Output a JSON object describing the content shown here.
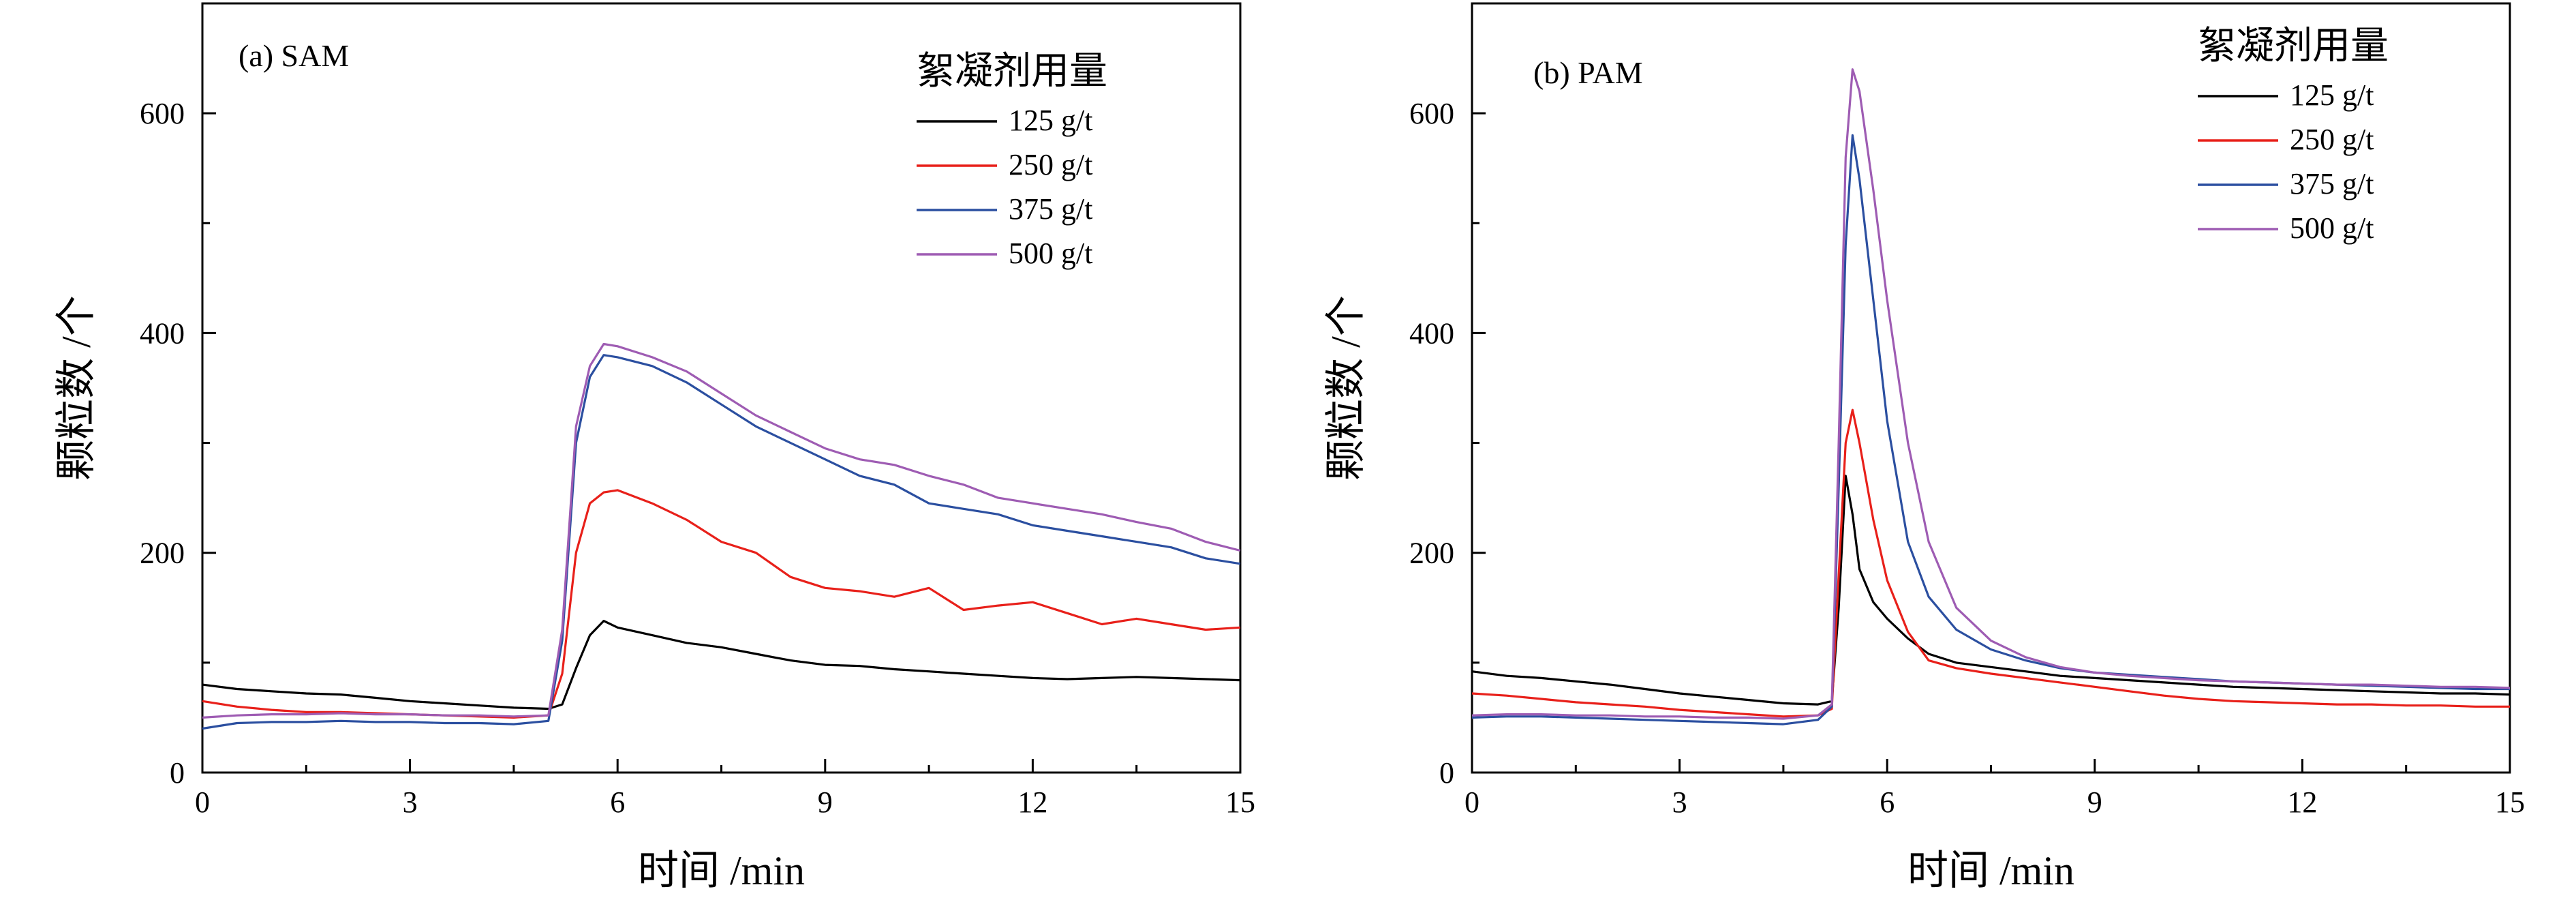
{
  "chart_data": [
    {
      "type": "line",
      "title": "(a) SAM",
      "xlabel": "时间 /min",
      "ylabel": "颗粒数 /个",
      "xlim": [
        0,
        15
      ],
      "ylim": [
        0,
        700
      ],
      "xticks": [
        0,
        3,
        6,
        9,
        12,
        15
      ],
      "xtick_labels": [
        "0",
        "3",
        "6",
        "9",
        "12",
        "15"
      ],
      "yticks": [
        0,
        200,
        400,
        600
      ],
      "ytick_labels": [
        "0",
        "200",
        "400",
        "600"
      ],
      "grid": false,
      "legend": {
        "title": "絮凝剂用量",
        "placement": "top-right"
      },
      "series": [
        {
          "name": "125 g/t",
          "color": "#000000",
          "x": [
            0,
            0.5,
            1,
            1.5,
            2,
            2.5,
            3,
            3.5,
            4,
            4.5,
            5,
            5.2,
            5.4,
            5.6,
            5.8,
            6,
            6.5,
            7,
            7.5,
            8,
            8.5,
            9,
            9.5,
            10,
            10.5,
            11,
            11.5,
            12,
            12.5,
            13,
            13.5,
            14,
            14.5,
            15
          ],
          "y": [
            80,
            76,
            74,
            72,
            71,
            68,
            65,
            63,
            61,
            59,
            58,
            62,
            95,
            125,
            138,
            132,
            125,
            118,
            114,
            108,
            102,
            98,
            97,
            94,
            92,
            90,
            88,
            86,
            85,
            86,
            87,
            86,
            85,
            84
          ]
        },
        {
          "name": "250 g/t",
          "color": "#e8201a",
          "x": [
            0,
            0.5,
            1,
            1.5,
            2,
            2.5,
            3,
            3.5,
            4,
            4.5,
            5,
            5.2,
            5.4,
            5.6,
            5.8,
            6,
            6.5,
            7,
            7.5,
            8,
            8.5,
            9,
            9.5,
            10,
            10.5,
            11,
            11.5,
            12,
            12.5,
            13,
            13.5,
            14,
            14.5,
            15
          ],
          "y": [
            65,
            60,
            57,
            55,
            55,
            54,
            53,
            52,
            51,
            50,
            52,
            90,
            200,
            245,
            255,
            257,
            245,
            230,
            210,
            200,
            178,
            168,
            165,
            160,
            168,
            148,
            152,
            155,
            145,
            135,
            140,
            135,
            130,
            132
          ]
        },
        {
          "name": "375 g/t",
          "color": "#2b4fa0",
          "x": [
            0,
            0.5,
            1,
            1.5,
            2,
            2.5,
            3,
            3.5,
            4,
            4.5,
            5,
            5.2,
            5.4,
            5.6,
            5.8,
            6,
            6.5,
            7,
            7.5,
            8,
            8.5,
            9,
            9.5,
            10,
            10.5,
            11,
            11.5,
            12,
            12.5,
            13,
            13.5,
            14,
            14.5,
            15
          ],
          "y": [
            40,
            45,
            46,
            46,
            47,
            46,
            46,
            45,
            45,
            44,
            47,
            120,
            300,
            360,
            380,
            378,
            370,
            355,
            335,
            315,
            300,
            285,
            270,
            262,
            245,
            240,
            235,
            225,
            220,
            215,
            210,
            205,
            195,
            190
          ]
        },
        {
          "name": "500 g/t",
          "color": "#9e5cb3",
          "x": [
            0,
            0.5,
            1,
            1.5,
            2,
            2.5,
            3,
            3.5,
            4,
            4.5,
            5,
            5.2,
            5.4,
            5.6,
            5.8,
            6,
            6.5,
            7,
            7.5,
            8,
            8.5,
            9,
            9.5,
            10,
            10.5,
            11,
            11.5,
            12,
            12.5,
            13,
            13.5,
            14,
            14.5,
            15
          ],
          "y": [
            50,
            52,
            53,
            53,
            54,
            53,
            53,
            52,
            52,
            51,
            52,
            130,
            315,
            370,
            390,
            388,
            378,
            365,
            345,
            325,
            310,
            295,
            285,
            280,
            270,
            262,
            250,
            245,
            240,
            235,
            228,
            222,
            210,
            202
          ]
        }
      ]
    },
    {
      "type": "line",
      "title": "(b) PAM",
      "xlabel": "时间 /min",
      "ylabel": "颗粒数 /个",
      "xlim": [
        0,
        15
      ],
      "ylim": [
        0,
        700
      ],
      "xticks": [
        0,
        3,
        6,
        9,
        12,
        15
      ],
      "xtick_labels": [
        "0",
        "3",
        "6",
        "9",
        "12",
        "15"
      ],
      "yticks": [
        0,
        200,
        400,
        600
      ],
      "ytick_labels": [
        "0",
        "200",
        "400",
        "600"
      ],
      "grid": false,
      "legend": {
        "title": "絮凝剂用量",
        "placement": "top-right"
      },
      "series": [
        {
          "name": "125 g/t",
          "color": "#000000",
          "x": [
            0,
            0.5,
            1,
            1.5,
            2,
            2.5,
            3,
            3.5,
            4,
            4.5,
            5,
            5.2,
            5.3,
            5.4,
            5.5,
            5.6,
            5.8,
            6,
            6.3,
            6.6,
            7,
            7.5,
            8,
            8.5,
            9,
            9.5,
            10,
            10.5,
            11,
            11.5,
            12,
            12.5,
            13,
            13.5,
            14,
            14.5,
            15
          ],
          "y": [
            92,
            88,
            86,
            83,
            80,
            76,
            72,
            69,
            66,
            63,
            62,
            65,
            150,
            270,
            235,
            185,
            155,
            140,
            122,
            108,
            100,
            96,
            92,
            88,
            86,
            84,
            82,
            80,
            78,
            77,
            76,
            75,
            74,
            73,
            72,
            72,
            71
          ]
        },
        {
          "name": "250 g/t",
          "color": "#e8201a",
          "x": [
            0,
            0.5,
            1,
            1.5,
            2,
            2.5,
            3,
            3.5,
            4,
            4.5,
            5,
            5.2,
            5.3,
            5.4,
            5.5,
            5.6,
            5.8,
            6,
            6.3,
            6.6,
            7,
            7.5,
            8,
            8.5,
            9,
            9.5,
            10,
            10.5,
            11,
            11.5,
            12,
            12.5,
            13,
            13.5,
            14,
            14.5,
            15
          ],
          "y": [
            72,
            70,
            67,
            64,
            62,
            60,
            57,
            55,
            53,
            51,
            52,
            58,
            180,
            300,
            330,
            300,
            230,
            175,
            128,
            102,
            95,
            90,
            86,
            82,
            78,
            74,
            70,
            67,
            65,
            64,
            63,
            62,
            62,
            61,
            61,
            60,
            60
          ]
        },
        {
          "name": "375 g/t",
          "color": "#2b4fa0",
          "x": [
            0,
            0.5,
            1,
            1.5,
            2,
            2.5,
            3,
            3.5,
            4,
            4.5,
            5,
            5.2,
            5.3,
            5.4,
            5.5,
            5.6,
            5.8,
            6,
            6.3,
            6.6,
            7,
            7.5,
            8,
            8.5,
            9,
            9.5,
            10,
            10.5,
            11,
            11.5,
            12,
            12.5,
            13,
            13.5,
            14,
            14.5,
            15
          ],
          "y": [
            50,
            51,
            51,
            50,
            49,
            48,
            47,
            46,
            45,
            44,
            48,
            60,
            260,
            480,
            580,
            540,
            430,
            320,
            210,
            160,
            130,
            112,
            102,
            95,
            91,
            89,
            87,
            85,
            83,
            82,
            81,
            80,
            79,
            78,
            77,
            76,
            76
          ]
        },
        {
          "name": "500 g/t",
          "color": "#9e5cb3",
          "x": [
            0,
            0.5,
            1,
            1.5,
            2,
            2.5,
            3,
            3.5,
            4,
            4.5,
            5,
            5.2,
            5.3,
            5.4,
            5.5,
            5.6,
            5.8,
            6,
            6.3,
            6.6,
            7,
            7.5,
            8,
            8.5,
            9,
            9.5,
            10,
            10.5,
            11,
            11.5,
            12,
            12.5,
            13,
            13.5,
            14,
            14.5,
            15
          ],
          "y": [
            52,
            53,
            53,
            52,
            52,
            51,
            51,
            50,
            50,
            49,
            52,
            62,
            300,
            560,
            640,
            620,
            530,
            430,
            300,
            210,
            150,
            120,
            105,
            96,
            91,
            88,
            86,
            84,
            83,
            82,
            81,
            80,
            80,
            79,
            78,
            78,
            77
          ]
        }
      ]
    }
  ]
}
